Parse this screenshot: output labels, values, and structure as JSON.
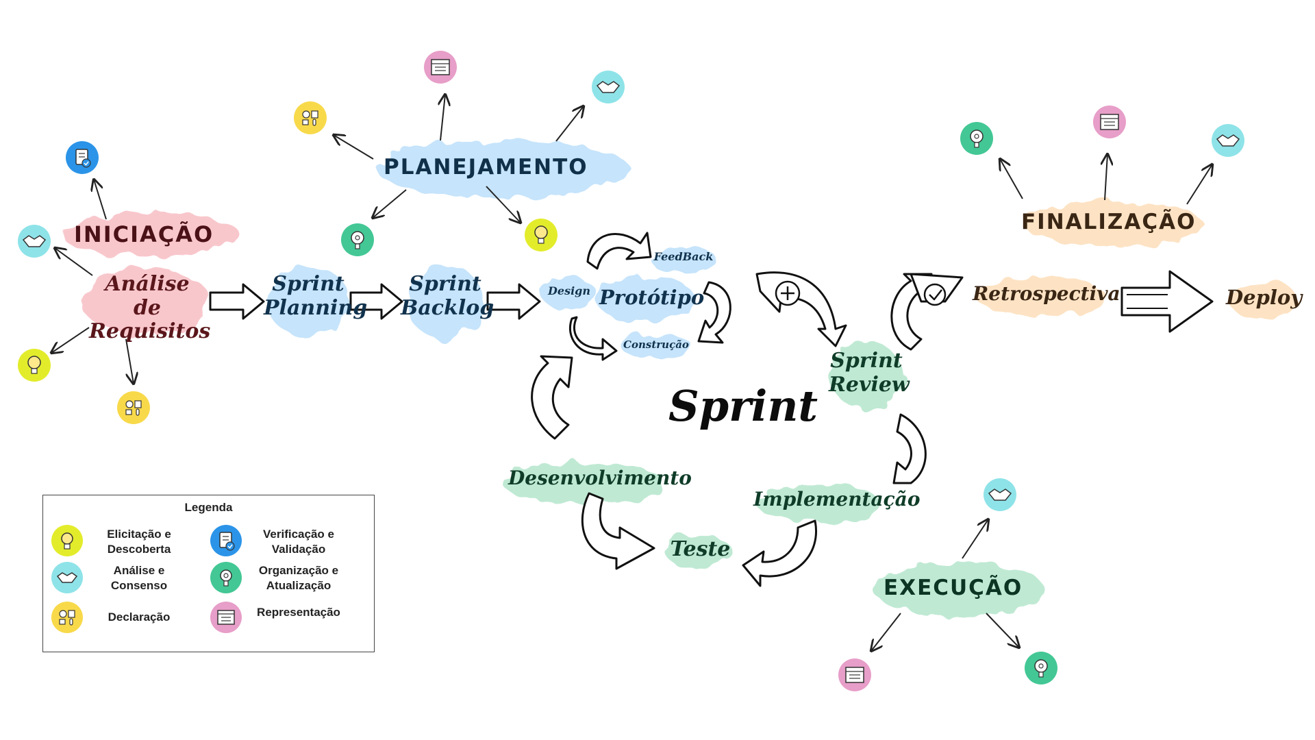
{
  "phases": {
    "iniciacao": "INICIAÇÃO",
    "planejamento": "PLANEJAMENTO",
    "execucao": "EXECUÇÃO",
    "finalizacao": "FINALIZAÇÃO"
  },
  "steps": {
    "analise": [
      "Análise de",
      "Requisitos"
    ],
    "sprint_planning": [
      "Sprint",
      "Planning"
    ],
    "sprint_backlog": [
      "Sprint",
      "Backlog"
    ],
    "design": "Design",
    "prototipo": "Protótipo",
    "feedback": "FeedBack",
    "construcao": "Construção",
    "sprint": "Sprint",
    "sprint_review": [
      "Sprint",
      "Review"
    ],
    "retrospectiva": "Retrospectiva",
    "deploy": "Deploy",
    "desenvolvimento": "Desenvolvimento",
    "teste": "Teste",
    "implementacao": "Implementação"
  },
  "legend": {
    "title": "Legenda",
    "items": [
      {
        "icon": "lightbulb-icon",
        "label": [
          "Elicitação e",
          "Descoberta"
        ]
      },
      {
        "icon": "handshake-icon",
        "label": [
          "Análise e",
          "Consenso"
        ]
      },
      {
        "icon": "declaration-icon",
        "label": [
          "Declaração"
        ]
      },
      {
        "icon": "checklist-icon",
        "label": [
          "Verificação e",
          "Validação"
        ]
      },
      {
        "icon": "gear-head-icon",
        "label": [
          "Organização e",
          "Atualização"
        ]
      },
      {
        "icon": "document-icon",
        "label": [
          "Representação"
        ]
      }
    ]
  },
  "colors": {
    "pink": "#f8c7cc",
    "blue": "#c6e4fb",
    "green": "#bfe9d3",
    "peach": "#fde3c4",
    "yellow_icon": "#e3ec2b",
    "cyan_icon": "#8ee3e8",
    "gold_icon": "#f8d94a",
    "royal_icon": "#2b94e8",
    "teal_icon": "#43c795",
    "pinkicon": "#e79ec8"
  }
}
